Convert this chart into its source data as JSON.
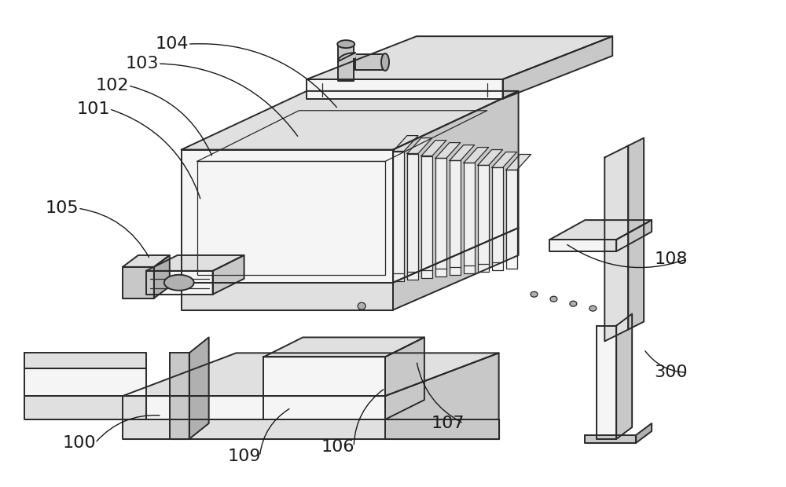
{
  "background_color": "#ffffff",
  "line_color": "#2a2a2a",
  "label_color": "#1a1a1a",
  "fill_white": "#f5f5f5",
  "fill_light": "#e0e0e0",
  "fill_mid": "#c8c8c8",
  "fill_dark": "#b0b0b0",
  "label_fontsize": 16,
  "figsize": [
    10.0,
    6.2
  ],
  "dpi": 100,
  "labels_info": {
    "104": {
      "lpos": [
        218,
        55
      ],
      "tpos": [
        430,
        138
      ]
    },
    "103": {
      "lpos": [
        180,
        80
      ],
      "tpos": [
        380,
        175
      ]
    },
    "102": {
      "lpos": [
        142,
        108
      ],
      "tpos": [
        270,
        200
      ]
    },
    "101": {
      "lpos": [
        118,
        138
      ],
      "tpos": [
        255,
        255
      ]
    },
    "105": {
      "lpos": [
        78,
        265
      ],
      "tpos": [
        190,
        330
      ]
    },
    "106": {
      "lpos": [
        430,
        570
      ],
      "tpos": [
        490,
        495
      ]
    },
    "107": {
      "lpos": [
        570,
        540
      ],
      "tpos": [
        530,
        460
      ]
    },
    "108": {
      "lpos": [
        855,
        330
      ],
      "tpos": [
        720,
        310
      ]
    },
    "109": {
      "lpos": [
        310,
        582
      ],
      "tpos": [
        370,
        520
      ]
    },
    "100": {
      "lpos": [
        100,
        565
      ],
      "tpos": [
        205,
        530
      ]
    },
    "300": {
      "lpos": [
        855,
        475
      ],
      "tpos": [
        820,
        445
      ]
    }
  }
}
